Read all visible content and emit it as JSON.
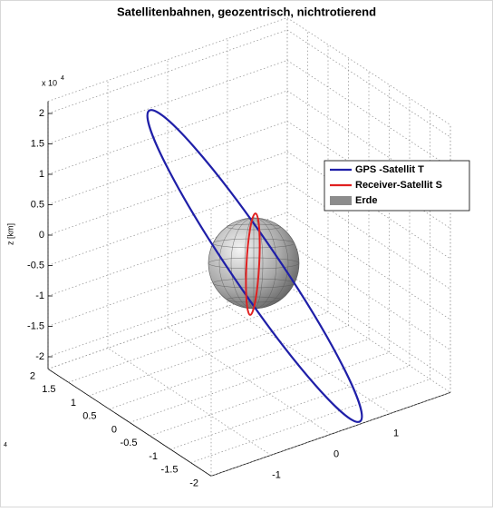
{
  "chart_data": {
    "type": "line3d",
    "title": "Satellitenbahnen, geozentrisch, nichtrotierend",
    "zlabel": "z [km]",
    "z_multiplier": {
      "base": "x 10",
      "exponent": "4"
    },
    "x_multiplier_exponent": "4",
    "xlim": [
      -2,
      2
    ],
    "ylim": [
      -2,
      2
    ],
    "zlim": [
      -2.2,
      2.2
    ],
    "xticks": [
      -2,
      -1.5,
      -1,
      -0.5,
      0,
      0.5,
      1,
      1.5,
      2
    ],
    "yticks": [
      -1,
      0,
      1
    ],
    "zticks": [
      -2,
      -1.5,
      -1,
      -0.5,
      0,
      0.5,
      1,
      1.5,
      2
    ],
    "grid": true,
    "legend": "upper right",
    "series": [
      {
        "name": "GPS -Satellit T",
        "color": "#1f1fa8"
      },
      {
        "name": "Receiver-Satellit S",
        "color": "#e02020"
      },
      {
        "name": "Erde",
        "color": "#8c8c8c"
      }
    ]
  }
}
